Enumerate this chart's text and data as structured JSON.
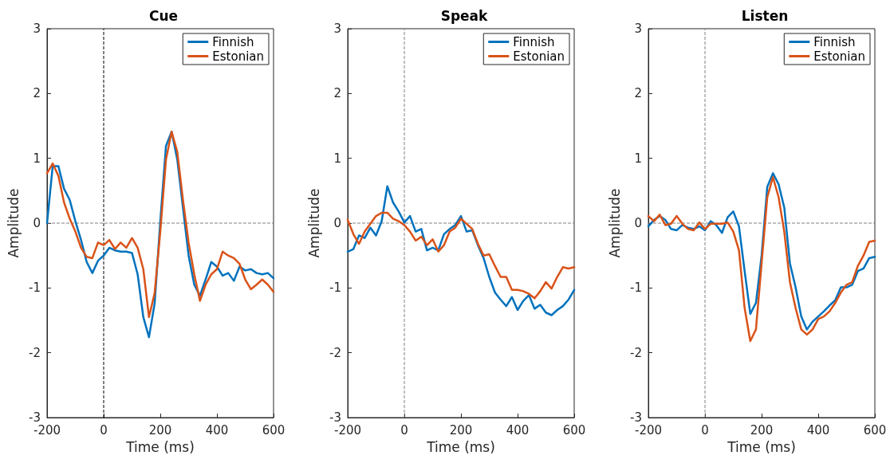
{
  "chart_data": [
    {
      "type": "line",
      "title": "Cue",
      "xlabel": "Time (ms)",
      "ylabel": "Amplitude",
      "x": [
        -200,
        -180,
        -160,
        -140,
        -120,
        -100,
        -80,
        -60,
        -40,
        -20,
        0,
        20,
        40,
        60,
        80,
        100,
        120,
        140,
        160,
        180,
        200,
        220,
        240,
        260,
        280,
        300,
        320,
        340,
        360,
        380,
        400,
        420,
        440,
        460,
        480,
        500,
        520,
        540,
        560,
        580,
        600
      ],
      "series": [
        {
          "name": "Finnish",
          "color": "#0072bd",
          "values": [
            0,
            0.88,
            0.88,
            0.53,
            0.36,
            0.03,
            -0.26,
            -0.6,
            -0.77,
            -0.58,
            -0.5,
            -0.38,
            -0.42,
            -0.44,
            -0.44,
            -0.46,
            -0.79,
            -1.45,
            -1.76,
            -1.24,
            0.03,
            1.19,
            1.41,
            0.98,
            0.24,
            -0.5,
            -0.95,
            -1.12,
            -0.87,
            -0.6,
            -0.67,
            -0.81,
            -0.77,
            -0.89,
            -0.67,
            -0.73,
            -0.71,
            -0.77,
            -0.79,
            -0.77,
            -0.85
          ]
        },
        {
          "name": "Estonian",
          "color": "#d95319",
          "values": [
            0.77,
            0.92,
            0.73,
            0.32,
            0.07,
            -0.13,
            -0.38,
            -0.52,
            -0.54,
            -0.3,
            -0.34,
            -0.26,
            -0.4,
            -0.3,
            -0.38,
            -0.23,
            -0.38,
            -0.71,
            -1.45,
            -1.08,
            -0.13,
            0.98,
            1.41,
            1.1,
            0.36,
            -0.3,
            -0.79,
            -1.2,
            -0.95,
            -0.79,
            -0.71,
            -0.44,
            -0.5,
            -0.54,
            -0.63,
            -0.87,
            -1.02,
            -0.95,
            -0.87,
            -0.95,
            -1.06
          ]
        }
      ],
      "xlim": [
        -200,
        600
      ],
      "xticks": [
        -200,
        0,
        200,
        400,
        600
      ],
      "ylim": [
        -3,
        3
      ],
      "yticks": [
        -3,
        -2,
        -1,
        0,
        1,
        2,
        3
      ],
      "ref_lines": [
        {
          "axis": "x",
          "value": 0,
          "color": "#000000",
          "line_style": "dashed"
        },
        {
          "axis": "y",
          "value": 0,
          "color": "#808080",
          "line_style": "dashed"
        }
      ],
      "legend": "top right",
      "grid": false,
      "marker": "none",
      "line_style": "solid"
    },
    {
      "type": "line",
      "title": "Speak",
      "xlabel": "Time (ms)",
      "ylabel": "Amplitude",
      "x": [
        -200,
        -180,
        -160,
        -140,
        -120,
        -100,
        -80,
        -60,
        -40,
        -20,
        0,
        20,
        40,
        60,
        80,
        100,
        120,
        140,
        160,
        180,
        200,
        220,
        240,
        260,
        280,
        300,
        320,
        340,
        360,
        380,
        400,
        420,
        440,
        460,
        480,
        500,
        520,
        540,
        560,
        580,
        600
      ],
      "series": [
        {
          "name": "Finnish",
          "color": "#0072bd",
          "values": [
            -0.44,
            -0.4,
            -0.19,
            -0.23,
            -0.07,
            -0.19,
            0.03,
            0.57,
            0.32,
            0.18,
            0.01,
            0.11,
            -0.13,
            -0.09,
            -0.42,
            -0.38,
            -0.42,
            -0.17,
            -0.09,
            -0.03,
            0.11,
            -0.13,
            -0.11,
            -0.34,
            -0.54,
            -0.83,
            -1.07,
            -1.18,
            -1.28,
            -1.14,
            -1.34,
            -1.2,
            -1.11,
            -1.32,
            -1.26,
            -1.38,
            -1.42,
            -1.34,
            -1.28,
            -1.18,
            -1.03
          ]
        },
        {
          "name": "Estonian",
          "color": "#d95319",
          "values": [
            0.05,
            -0.17,
            -0.32,
            -0.13,
            -0.01,
            0.11,
            0.16,
            0.16,
            0.07,
            0.03,
            -0.03,
            -0.13,
            -0.27,
            -0.21,
            -0.34,
            -0.25,
            -0.44,
            -0.34,
            -0.13,
            -0.07,
            0.07,
            -0.01,
            -0.09,
            -0.32,
            -0.5,
            -0.48,
            -0.66,
            -0.83,
            -0.83,
            -1.03,
            -1.03,
            -1.05,
            -1.09,
            -1.16,
            -1.05,
            -0.91,
            -1.01,
            -0.83,
            -0.68,
            -0.7,
            -0.68
          ]
        }
      ],
      "xlim": [
        -200,
        600
      ],
      "xticks": [
        -200,
        0,
        200,
        400,
        600
      ],
      "ylim": [
        -3,
        3
      ],
      "yticks": [
        -3,
        -2,
        -1,
        0,
        1,
        2,
        3
      ],
      "ref_lines": [
        {
          "axis": "x",
          "value": 0,
          "color": "#808080",
          "line_style": "dashed"
        },
        {
          "axis": "y",
          "value": 0,
          "color": "#808080",
          "line_style": "dashed"
        }
      ],
      "legend": "top right",
      "grid": false,
      "marker": "none",
      "line_style": "solid"
    },
    {
      "type": "line",
      "title": "Listen",
      "xlabel": "Time (ms)",
      "ylabel": "Amplitude",
      "x": [
        -200,
        -180,
        -160,
        -140,
        -120,
        -100,
        -80,
        -60,
        -40,
        -20,
        0,
        20,
        40,
        60,
        80,
        100,
        120,
        140,
        160,
        180,
        200,
        220,
        240,
        260,
        280,
        300,
        320,
        340,
        360,
        380,
        400,
        420,
        440,
        460,
        480,
        500,
        520,
        540,
        560,
        580,
        600
      ],
      "series": [
        {
          "name": "Finnish",
          "color": "#0072bd",
          "values": [
            -0.05,
            0.05,
            0.11,
            0.05,
            -0.09,
            -0.11,
            -0.03,
            -0.07,
            -0.09,
            -0.05,
            -0.11,
            0.03,
            -0.03,
            -0.15,
            0.09,
            0.18,
            -0.05,
            -0.74,
            -1.4,
            -1.23,
            -0.5,
            0.56,
            0.77,
            0.6,
            0.24,
            -0.62,
            -0.99,
            -1.44,
            -1.64,
            -1.52,
            -1.44,
            -1.36,
            -1.27,
            -1.19,
            -0.99,
            -0.99,
            -0.95,
            -0.74,
            -0.7,
            -0.54,
            -0.52
          ]
        },
        {
          "name": "Estonian",
          "color": "#d95319",
          "values": [
            0.11,
            0.03,
            0.13,
            -0.03,
            -0.01,
            0.11,
            -0.01,
            -0.09,
            -0.11,
            0.01,
            -0.09,
            -0.01,
            -0.01,
            -0.01,
            0.01,
            -0.13,
            -0.42,
            -1.31,
            -1.82,
            -1.64,
            -0.62,
            0.4,
            0.71,
            0.4,
            -0.13,
            -0.91,
            -1.31,
            -1.64,
            -1.72,
            -1.64,
            -1.48,
            -1.44,
            -1.36,
            -1.23,
            -1.07,
            -0.95,
            -0.91,
            -0.66,
            -0.5,
            -0.29,
            -0.27
          ]
        }
      ],
      "xlim": [
        -200,
        600
      ],
      "xticks": [
        -200,
        0,
        200,
        400,
        600
      ],
      "ylim": [
        -3,
        3
      ],
      "yticks": [
        -3,
        -2,
        -1,
        0,
        1,
        2,
        3
      ],
      "ref_lines": [
        {
          "axis": "x",
          "value": 0,
          "color": "#808080",
          "line_style": "dashed"
        },
        {
          "axis": "y",
          "value": 0,
          "color": "#808080",
          "line_style": "dashed"
        }
      ],
      "legend": "top right",
      "grid": false,
      "marker": "none",
      "line_style": "solid"
    }
  ]
}
